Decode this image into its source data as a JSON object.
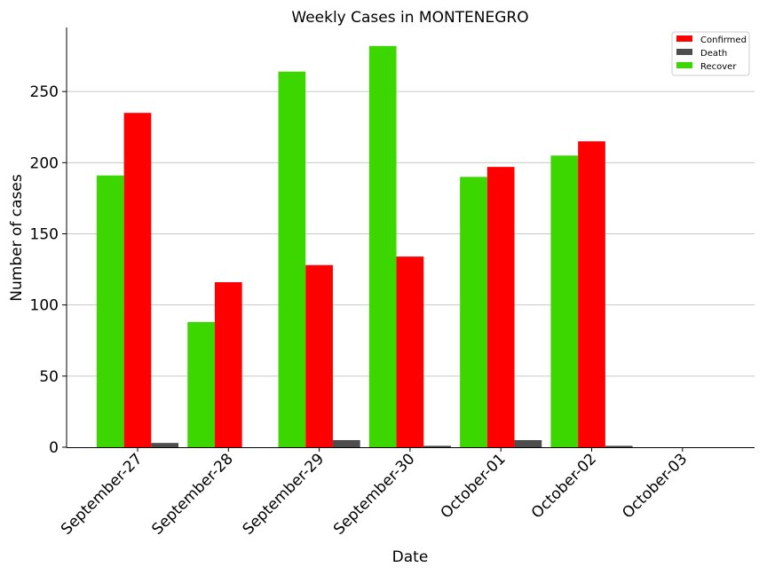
{
  "chart_data": {
    "type": "bar",
    "title": "Weekly Cases in MONTENEGRO",
    "xlabel": "Date",
    "ylabel": "Number of cases",
    "categories": [
      "September-27",
      "September-28",
      "September-29",
      "September-30",
      "October-01",
      "October-02",
      "October-03"
    ],
    "series": [
      {
        "name": "Recover",
        "color": "#3cd600",
        "values": [
          191,
          88,
          264,
          282,
          190,
          205,
          0
        ]
      },
      {
        "name": "Confirmed",
        "color": "#ff0000",
        "values": [
          235,
          116,
          128,
          134,
          197,
          215,
          0
        ]
      },
      {
        "name": "Death",
        "color": "#4d4d4d",
        "values": [
          3,
          0,
          5,
          1,
          5,
          1,
          0
        ]
      }
    ],
    "legend_order": [
      "Confirmed",
      "Death",
      "Recover"
    ],
    "ylim": [
      0,
      295
    ],
    "yticks": [
      0,
      50,
      100,
      150,
      200,
      250
    ],
    "grid": "horizontal",
    "legend": "top-right"
  }
}
